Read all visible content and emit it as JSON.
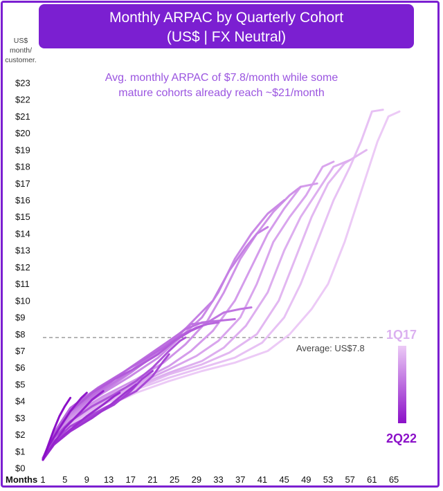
{
  "title": {
    "line1": "Monthly ARPAC by Quarterly Cohort",
    "line2": "(US$ | FX Neutral)"
  },
  "colors": {
    "accent": "#7b1fd1",
    "newest_cohort": "#8b10c8",
    "oldest_cohort": "#eccaf6",
    "annotation": "#9b55e0"
  },
  "chart_data": {
    "type": "line",
    "title": "Monthly ARPAC by Quarterly Cohort",
    "subtitle": "(US$ | FX Neutral)",
    "y_unit_label": [
      "US$",
      "month/",
      "customer."
    ],
    "x_axis_label": "Months",
    "annotation": [
      "Avg. monthly ARPAC of $7.8/month while some",
      "mature cohorts already reach ~$21/month"
    ],
    "ylim": [
      0,
      23
    ],
    "xlim": [
      1,
      66
    ],
    "y_ticks": [
      "$0",
      "$1",
      "$2",
      "$3",
      "$4",
      "$5",
      "$6",
      "$7",
      "$8",
      "$9",
      "$10",
      "$11",
      "$12",
      "$13",
      "$14",
      "$15",
      "$16",
      "$17",
      "$18",
      "$19",
      "$20",
      "$21",
      "$22",
      "$23"
    ],
    "x_ticks": [
      1,
      5,
      9,
      13,
      17,
      21,
      25,
      29,
      33,
      37,
      41,
      45,
      49,
      53,
      57,
      61,
      65
    ],
    "average": {
      "value": 7.8,
      "label": "Average: US$7.8"
    },
    "legend": {
      "top": "1Q17",
      "bottom": "2Q22",
      "placement": "right"
    },
    "series": [
      {
        "max_month": 66,
        "values": [
          [
            1,
            0.6
          ],
          [
            3,
            1.5
          ],
          [
            6,
            2.4
          ],
          [
            12,
            3.6
          ],
          [
            18,
            4.5
          ],
          [
            24,
            5.2
          ],
          [
            30,
            5.8
          ],
          [
            36,
            6.3
          ],
          [
            42,
            7.0
          ],
          [
            46,
            8.0
          ],
          [
            50,
            9.5
          ],
          [
            53,
            11.0
          ],
          [
            56,
            13.5
          ],
          [
            58,
            15.5
          ],
          [
            60,
            17.5
          ],
          [
            62,
            19.5
          ],
          [
            64,
            21.0
          ],
          [
            66,
            21.3
          ]
        ]
      },
      {
        "max_month": 63,
        "values": [
          [
            1,
            0.6
          ],
          [
            3,
            1.6
          ],
          [
            6,
            2.6
          ],
          [
            12,
            3.8
          ],
          [
            18,
            4.7
          ],
          [
            24,
            5.4
          ],
          [
            30,
            6.0
          ],
          [
            36,
            6.6
          ],
          [
            41,
            7.5
          ],
          [
            45,
            9.0
          ],
          [
            48,
            11.0
          ],
          [
            51,
            13.5
          ],
          [
            54,
            16.0
          ],
          [
            57,
            18.0
          ],
          [
            59,
            19.5
          ],
          [
            61,
            21.3
          ],
          [
            63,
            21.4
          ]
        ]
      },
      {
        "max_month": 60,
        "values": [
          [
            1,
            0.6
          ],
          [
            3,
            1.6
          ],
          [
            6,
            2.7
          ],
          [
            12,
            3.9
          ],
          [
            18,
            4.8
          ],
          [
            24,
            5.6
          ],
          [
            30,
            6.2
          ],
          [
            35,
            6.9
          ],
          [
            40,
            8.0
          ],
          [
            44,
            10.0
          ],
          [
            47,
            12.5
          ],
          [
            50,
            15.0
          ],
          [
            53,
            17.0
          ],
          [
            56,
            18.2
          ],
          [
            58,
            18.6
          ],
          [
            60,
            19.0
          ]
        ]
      },
      {
        "max_month": 57,
        "values": [
          [
            1,
            0.6
          ],
          [
            3,
            1.7
          ],
          [
            6,
            2.8
          ],
          [
            12,
            4.0
          ],
          [
            18,
            4.9
          ],
          [
            24,
            5.7
          ],
          [
            30,
            6.4
          ],
          [
            34,
            7.2
          ],
          [
            38,
            8.5
          ],
          [
            42,
            10.5
          ],
          [
            45,
            13.0
          ],
          [
            48,
            15.0
          ],
          [
            51,
            16.5
          ],
          [
            54,
            18.0
          ],
          [
            57,
            18.4
          ]
        ]
      },
      {
        "max_month": 54,
        "values": [
          [
            1,
            0.6
          ],
          [
            3,
            1.7
          ],
          [
            6,
            2.9
          ],
          [
            12,
            4.1
          ],
          [
            18,
            5.0
          ],
          [
            24,
            5.9
          ],
          [
            29,
            6.7
          ],
          [
            33,
            7.6
          ],
          [
            37,
            9.0
          ],
          [
            40,
            11.0
          ],
          [
            43,
            13.5
          ],
          [
            46,
            15.0
          ],
          [
            49,
            16.3
          ],
          [
            52,
            18.0
          ],
          [
            54,
            18.3
          ]
        ]
      },
      {
        "max_month": 51,
        "values": [
          [
            1,
            0.6
          ],
          [
            3,
            1.8
          ],
          [
            6,
            3.0
          ],
          [
            12,
            4.2
          ],
          [
            18,
            5.1
          ],
          [
            24,
            6.1
          ],
          [
            28,
            7.0
          ],
          [
            32,
            8.2
          ],
          [
            36,
            10.0
          ],
          [
            39,
            12.0
          ],
          [
            42,
            14.0
          ],
          [
            45,
            15.5
          ],
          [
            48,
            16.8
          ],
          [
            51,
            17.0
          ]
        ]
      },
      {
        "max_month": 48,
        "values": [
          [
            1,
            0.6
          ],
          [
            3,
            1.8
          ],
          [
            6,
            3.1
          ],
          [
            12,
            4.3
          ],
          [
            18,
            5.3
          ],
          [
            23,
            6.3
          ],
          [
            27,
            7.4
          ],
          [
            31,
            8.8
          ],
          [
            34,
            10.5
          ],
          [
            37,
            12.5
          ],
          [
            40,
            14.0
          ],
          [
            43,
            15.3
          ],
          [
            46,
            16.3
          ],
          [
            48,
            16.8
          ]
        ]
      },
      {
        "max_month": 45,
        "values": [
          [
            1,
            0.6
          ],
          [
            3,
            1.9
          ],
          [
            6,
            3.2
          ],
          [
            12,
            4.5
          ],
          [
            17,
            5.5
          ],
          [
            22,
            6.6
          ],
          [
            26,
            7.8
          ],
          [
            30,
            9.0
          ],
          [
            33,
            10.5
          ],
          [
            36,
            12.5
          ],
          [
            39,
            14.0
          ],
          [
            42,
            15.2
          ],
          [
            45,
            16.0
          ]
        ]
      },
      {
        "max_month": 42,
        "values": [
          [
            1,
            0.6
          ],
          [
            3,
            1.9
          ],
          [
            6,
            3.3
          ],
          [
            12,
            4.6
          ],
          [
            17,
            5.7
          ],
          [
            22,
            6.9
          ],
          [
            26,
            8.0
          ],
          [
            29,
            9.0
          ],
          [
            32,
            10.0
          ],
          [
            35,
            11.8
          ],
          [
            38,
            13.2
          ],
          [
            40,
            14.0
          ],
          [
            42,
            14.4
          ]
        ]
      },
      {
        "max_month": 39,
        "values": [
          [
            1,
            0.6
          ],
          [
            3,
            2.0
          ],
          [
            6,
            3.4
          ],
          [
            12,
            4.7
          ],
          [
            17,
            5.8
          ],
          [
            21,
            6.8
          ],
          [
            25,
            7.8
          ],
          [
            28,
            8.6
          ],
          [
            31,
            8.7
          ],
          [
            34,
            9.3
          ],
          [
            37,
            9.5
          ],
          [
            39,
            9.6
          ]
        ]
      },
      {
        "max_month": 36,
        "values": [
          [
            1,
            0.6
          ],
          [
            3,
            2.0
          ],
          [
            6,
            3.5
          ],
          [
            12,
            4.8
          ],
          [
            16,
            5.8
          ],
          [
            20,
            6.7
          ],
          [
            24,
            7.6
          ],
          [
            27,
            8.3
          ],
          [
            30,
            8.7
          ],
          [
            33,
            8.8
          ],
          [
            36,
            8.9
          ]
        ]
      },
      {
        "max_month": 33,
        "values": [
          [
            1,
            0.6
          ],
          [
            3,
            2.1
          ],
          [
            6,
            3.6
          ],
          [
            11,
            4.8
          ],
          [
            15,
            5.6
          ],
          [
            19,
            6.4
          ],
          [
            23,
            7.2
          ],
          [
            26,
            7.9
          ],
          [
            29,
            8.4
          ],
          [
            31,
            8.6
          ],
          [
            33,
            8.7
          ]
        ]
      },
      {
        "max_month": 30,
        "values": [
          [
            1,
            0.6
          ],
          [
            3,
            2.0
          ],
          [
            6,
            3.4
          ],
          [
            10,
            4.5
          ],
          [
            14,
            5.3
          ],
          [
            18,
            6.0
          ],
          [
            22,
            6.8
          ],
          [
            25,
            7.6
          ],
          [
            28,
            8.2
          ],
          [
            30,
            8.5
          ]
        ]
      },
      {
        "max_month": 27,
        "values": [
          [
            1,
            0.6
          ],
          [
            3,
            1.8
          ],
          [
            6,
            2.8
          ],
          [
            10,
            3.7
          ],
          [
            14,
            4.4
          ],
          [
            18,
            5.2
          ],
          [
            21,
            6.0
          ],
          [
            24,
            7.0
          ],
          [
            26,
            7.6
          ],
          [
            27,
            7.8
          ]
        ]
      },
      {
        "max_month": 24,
        "values": [
          [
            1,
            0.5
          ],
          [
            3,
            1.6
          ],
          [
            6,
            2.5
          ],
          [
            10,
            3.2
          ],
          [
            14,
            3.9
          ],
          [
            18,
            4.6
          ],
          [
            21,
            5.5
          ],
          [
            23,
            6.4
          ],
          [
            24,
            6.8
          ]
        ]
      },
      {
        "max_month": 21,
        "values": [
          [
            1,
            0.5
          ],
          [
            3,
            1.5
          ],
          [
            6,
            2.3
          ],
          [
            10,
            3.1
          ],
          [
            14,
            3.8
          ],
          [
            17,
            4.6
          ],
          [
            19,
            5.3
          ],
          [
            21,
            5.8
          ]
        ]
      },
      {
        "max_month": 18,
        "values": [
          [
            1,
            0.5
          ],
          [
            3,
            1.4
          ],
          [
            6,
            2.2
          ],
          [
            10,
            3.0
          ],
          [
            13,
            3.7
          ],
          [
            16,
            4.5
          ],
          [
            18,
            5.0
          ]
        ]
      },
      {
        "max_month": 15,
        "values": [
          [
            1,
            0.5
          ],
          [
            3,
            1.4
          ],
          [
            6,
            2.3
          ],
          [
            9,
            3.1
          ],
          [
            12,
            3.8
          ],
          [
            14,
            4.3
          ],
          [
            15,
            4.5
          ]
        ]
      },
      {
        "max_month": 12,
        "values": [
          [
            1,
            0.5
          ],
          [
            3,
            1.5
          ],
          [
            5,
            2.4
          ],
          [
            8,
            3.4
          ],
          [
            10,
            4.1
          ],
          [
            12,
            4.6
          ]
        ]
      },
      {
        "max_month": 9,
        "values": [
          [
            1,
            0.5
          ],
          [
            2,
            1.3
          ],
          [
            4,
            2.4
          ],
          [
            6,
            3.4
          ],
          [
            8,
            4.2
          ],
          [
            9,
            4.5
          ]
        ]
      },
      {
        "max_month": 6,
        "values": [
          [
            1,
            0.5
          ],
          [
            2,
            1.4
          ],
          [
            3,
            2.3
          ],
          [
            4,
            3.1
          ],
          [
            5,
            3.7
          ],
          [
            6,
            4.2
          ]
        ]
      }
    ]
  }
}
